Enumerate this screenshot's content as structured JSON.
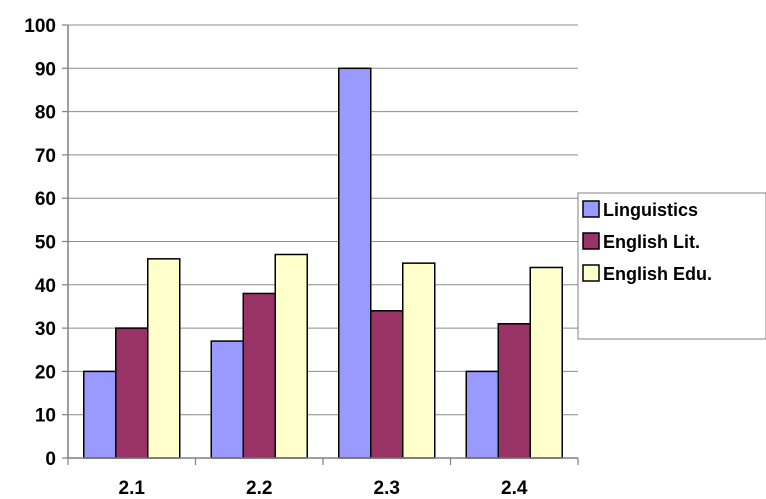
{
  "chart_data": {
    "type": "bar",
    "categories": [
      "2.1",
      "2.2",
      "2.3",
      "2.4"
    ],
    "series": [
      {
        "name": "Linguistics",
        "values": [
          20,
          27,
          90,
          20
        ],
        "color": "#9999ff"
      },
      {
        "name": "English Lit.",
        "values": [
          30,
          38,
          34,
          31
        ],
        "color": "#993366"
      },
      {
        "name": "English Edu.",
        "values": [
          46,
          47,
          45,
          44
        ],
        "color": "#ffffcc"
      }
    ],
    "ylim": [
      0,
      100
    ],
    "yticks": [
      0,
      10,
      20,
      30,
      40,
      50,
      60,
      70,
      80,
      90,
      100
    ],
    "grid": true,
    "legend_position": "right"
  }
}
